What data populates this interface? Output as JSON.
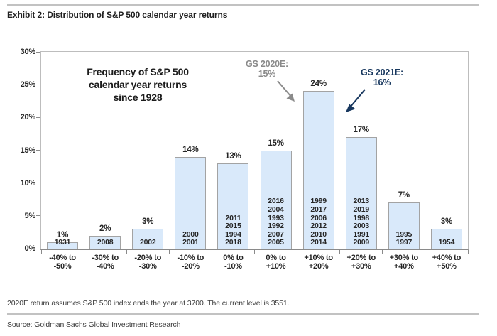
{
  "header": {
    "title": "Exhibit 2: Distribution of S&P 500 calendar year returns"
  },
  "chart": {
    "title_lines": [
      "Frequency of S&P 500",
      "calendar year returns",
      "since 1928"
    ],
    "annotations": {
      "gs2020": {
        "line1": "GS 2020E:",
        "line2": "15%",
        "color": "#8a8a8a"
      },
      "gs2021": {
        "line1": "GS 2021E:",
        "line2": "16%",
        "color": "#17375e"
      }
    }
  },
  "chart_data": {
    "type": "bar",
    "title": "Frequency of S&P 500 calendar year returns since 1928",
    "categories": [
      [
        "-40% to",
        "-50%"
      ],
      [
        "-30% to",
        "-40%"
      ],
      [
        "-20% to",
        "-30%"
      ],
      [
        "-10% to",
        "-20%"
      ],
      [
        "0% to",
        "-10%"
      ],
      [
        "0% to",
        "+10%"
      ],
      [
        "+10% to",
        "+20%"
      ],
      [
        "+20% to",
        "+30%"
      ],
      [
        "+30% to",
        "+40%"
      ],
      [
        "+40% to",
        "+50%"
      ]
    ],
    "values": [
      1,
      2,
      3,
      14,
      13,
      15,
      24,
      17,
      7,
      3
    ],
    "value_labels": [
      "1%",
      "2%",
      "3%",
      "14%",
      "13%",
      "15%",
      "24%",
      "17%",
      "7%",
      "3%"
    ],
    "bar_years": [
      [
        "1931"
      ],
      [
        "2008"
      ],
      [
        "2002"
      ],
      [
        "2000",
        "2001"
      ],
      [
        "2011",
        "2015",
        "1994",
        "2018"
      ],
      [
        "2016",
        "2004",
        "1993",
        "1992",
        "2007",
        "2005"
      ],
      [
        "1999",
        "2017",
        "2006",
        "2012",
        "2010",
        "2014"
      ],
      [
        "2013",
        "2019",
        "1998",
        "2003",
        "1991",
        "2009"
      ],
      [
        "1995",
        "1997"
      ],
      [
        "1954"
      ]
    ],
    "xlabel": "",
    "ylabel": "",
    "ylim": [
      0,
      30
    ],
    "ytick_values": [
      0,
      5,
      10,
      15,
      20,
      25,
      30
    ],
    "ytick_labels": [
      "0%",
      "5%",
      "10%",
      "15%",
      "20%",
      "25%",
      "30%"
    ],
    "grid": false,
    "legend": "none",
    "bar_color": "#d9e9fa",
    "bar_border": "#a3a3a3"
  },
  "footer": {
    "footnote": "2020E return assumes S&P 500 index ends the year at 3700. The current level is 3551.",
    "source": "Source: Goldman Sachs Global Investment Research"
  }
}
